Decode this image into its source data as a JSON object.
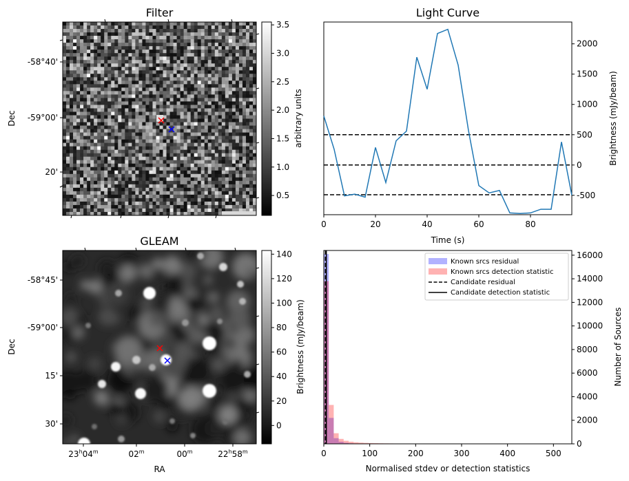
{
  "chart_data": [
    {
      "panel": "filter",
      "type": "heatmap",
      "title": "Filter",
      "ylabel": "Dec",
      "y_ticks": [
        "-58°40'",
        "-59°00'",
        "20'"
      ],
      "colorbar_label": "arbitrary units",
      "colorbar_range": [
        0.15,
        3.55
      ],
      "colorbar_ticks": [
        "0.5",
        "1.0",
        "1.5",
        "2.0",
        "2.5",
        "3.0",
        "3.5"
      ],
      "markers": [
        {
          "symbol": "x",
          "color": "#ff0000"
        },
        {
          "symbol": "x",
          "color": "#0000ff"
        }
      ]
    },
    {
      "panel": "light-curve",
      "type": "line",
      "title": "Light Curve",
      "xlabel": "Time (s)",
      "ylabel": "Brightness (mJy/beam)",
      "xlim": [
        0,
        96
      ],
      "ylim": [
        -820,
        2360
      ],
      "x_ticks": [
        "0",
        "20",
        "40",
        "60",
        "80"
      ],
      "y_ticks": [
        "-500",
        "0",
        "500",
        "1000",
        "1500",
        "2000"
      ],
      "series": [
        {
          "color": "#1f77b4",
          "x": [
            0,
            4,
            8,
            12,
            16,
            20,
            24,
            28,
            32,
            36,
            40,
            44,
            48,
            52,
            56,
            60,
            64,
            68,
            72,
            76,
            80,
            84,
            88,
            92,
            96
          ],
          "y": [
            810,
            260,
            -510,
            -480,
            -530,
            290,
            -290,
            400,
            560,
            1780,
            1250,
            2170,
            2240,
            1650,
            570,
            -340,
            -460,
            -420,
            -790,
            -800,
            -790,
            -730,
            -730,
            380,
            -500
          ]
        }
      ],
      "hlines": [
        {
          "y": 500,
          "style": "dashed",
          "color": "#000000"
        },
        {
          "y": 0,
          "style": "dashed",
          "color": "#000000"
        },
        {
          "y": -490,
          "style": "dashed",
          "color": "#000000"
        }
      ]
    },
    {
      "panel": "gleam",
      "type": "heatmap",
      "title": "GLEAM",
      "xlabel": "RA",
      "ylabel": "Dec",
      "y_ticks": [
        "-58°45'",
        "-59°00'",
        "15'",
        "30'"
      ],
      "x_ticks": [
        "23h04m",
        "02m",
        "00m",
        "22h58m"
      ],
      "colorbar_label": "Brightness (mJy/beam)",
      "colorbar_range": [
        -15,
        143
      ],
      "colorbar_ticks": [
        "0",
        "20",
        "40",
        "60",
        "80",
        "100",
        "120",
        "140"
      ],
      "markers": [
        {
          "symbol": "x",
          "color": "#ff0000"
        },
        {
          "symbol": "x",
          "color": "#0000ff"
        }
      ]
    },
    {
      "panel": "histogram",
      "type": "bar",
      "xlabel": "Normalised stdev or detection statistics",
      "ylabel": "Number of Sources",
      "xlim": [
        0,
        540
      ],
      "ylim": [
        0,
        16400
      ],
      "x_ticks": [
        "0",
        "100",
        "200",
        "300",
        "400",
        "500"
      ],
      "y_ticks": [
        "0",
        "2000",
        "4000",
        "6000",
        "8000",
        "10000",
        "12000",
        "14000",
        "16000"
      ],
      "bin_width": 10.8,
      "legend_position": "top-right",
      "series": [
        {
          "name": "Known srcs residual",
          "color": "#0000ff",
          "opacity": 0.3,
          "values": [
            16100,
            2200,
            480,
            180,
            90,
            50,
            30,
            20,
            15,
            10,
            8,
            6,
            5,
            4,
            3,
            3,
            2,
            2,
            2,
            1
          ]
        },
        {
          "name": "Known srcs detection statistic",
          "color": "#ff0000",
          "opacity": 0.3,
          "values": [
            13800,
            3300,
            900,
            420,
            260,
            180,
            130,
            100,
            80,
            65,
            55,
            45,
            40,
            35,
            30,
            28,
            25,
            22,
            20,
            18,
            16,
            14,
            13,
            12,
            11,
            10,
            9,
            9,
            8,
            8,
            7,
            7,
            6,
            6,
            6,
            5,
            5,
            5,
            4,
            4,
            4,
            4,
            3,
            3,
            3,
            3,
            3,
            2,
            2,
            2
          ]
        }
      ],
      "vlines": [
        {
          "name": "Candidate residual",
          "x": 3.5,
          "style": "dashed",
          "color": "#000000"
        },
        {
          "name": "Candidate detection statistic",
          "x": 5.5,
          "style": "solid",
          "color": "#000000"
        }
      ]
    }
  ]
}
